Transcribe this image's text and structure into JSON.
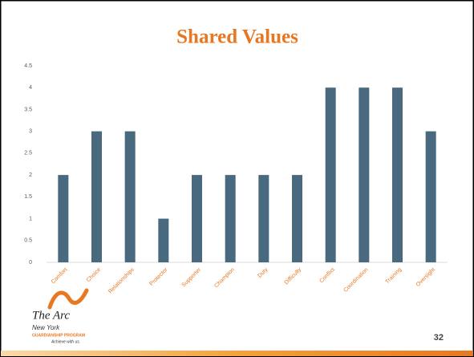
{
  "chart_data": {
    "type": "bar",
    "title": "Shared Values",
    "categories": [
      "Comfort",
      "Choice",
      "Relationships",
      "Protector",
      "Supporter",
      "Champion",
      "Duty",
      "Difficulty",
      "Conflict",
      "Coordination",
      "Training",
      "Oversight"
    ],
    "values": [
      2,
      3,
      3,
      1,
      2,
      2,
      2,
      2,
      4,
      4,
      4,
      3
    ],
    "color": "#48697e",
    "ylim": [
      0,
      4.5
    ],
    "yticks": [
      0,
      0.5,
      1,
      1.5,
      2,
      2.5,
      3,
      3.5,
      4,
      4.5
    ],
    "grid": false
  },
  "slide": {
    "logo_name": "The Arc",
    "logo_region": "New York",
    "logo_program": "GUARDIANSHIP PROGRAM",
    "logo_tagline": "Achieve with us.",
    "page_number": "32"
  }
}
